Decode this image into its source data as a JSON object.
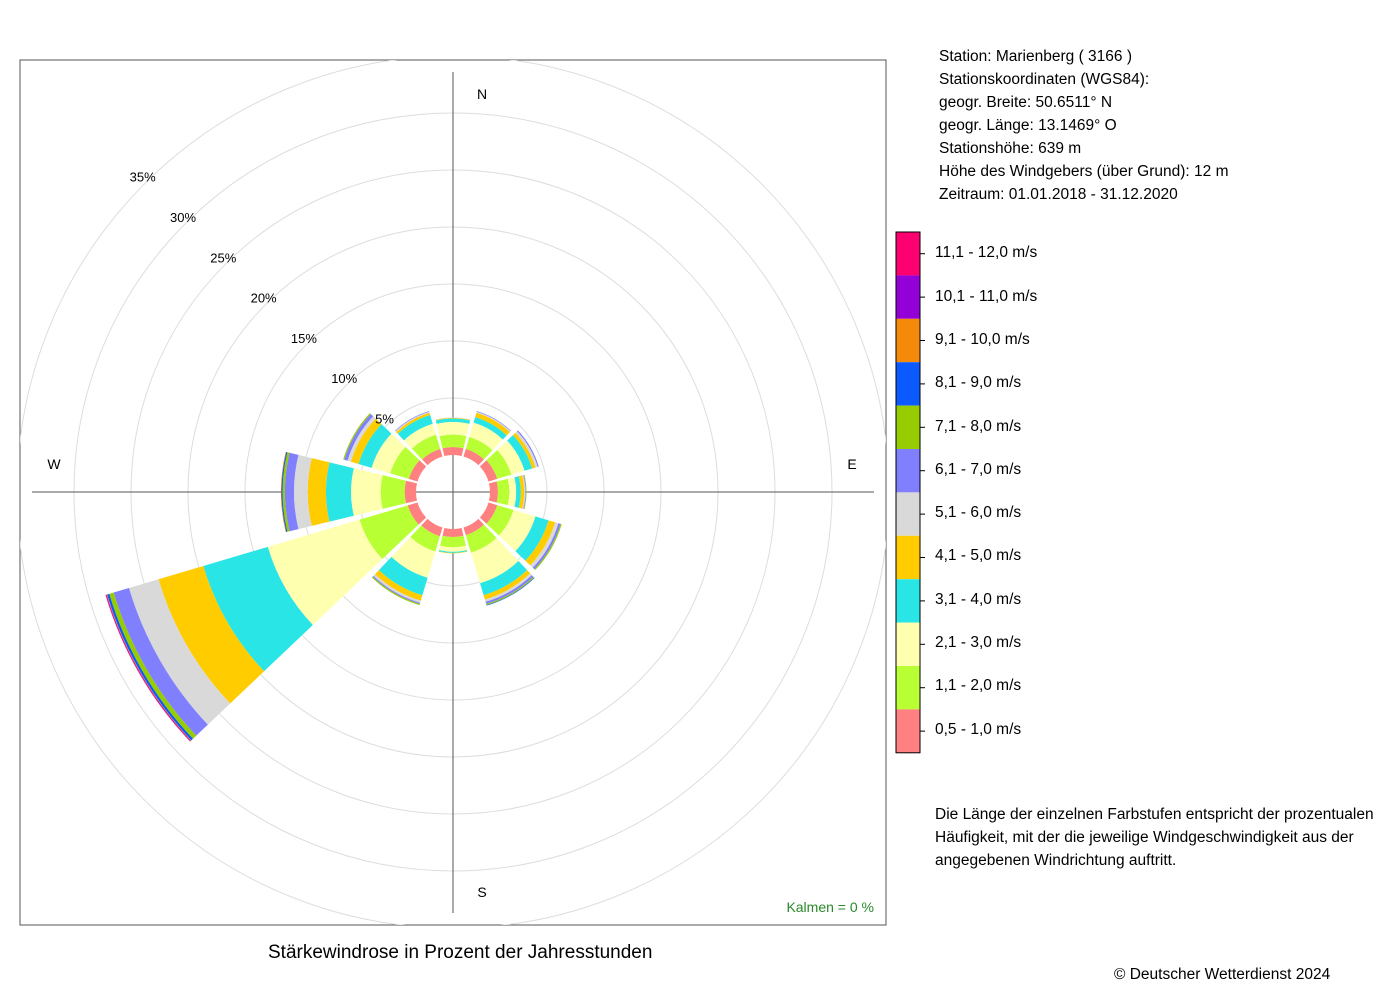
{
  "station_info": [
    "Station:  Marienberg  ( 3166 )",
    "Stationskoordinaten (WGS84):",
    "geogr. Breite: 50.6511° N",
    "geogr. Länge: 13.1469° O",
    "Stationshöhe: 639 m",
    "Höhe des Windgebers (über Grund): 12 m",
    "Zeitraum: 01.01.2018 - 31.12.2020"
  ],
  "legend": {
    "classes": [
      {
        "label": "11,1 - 12,0 m/s",
        "color": "#ff0070"
      },
      {
        "label": "10,1 - 11,0 m/s",
        "color": "#9300d8"
      },
      {
        "label": "9,1 - 10,0 m/s",
        "color": "#f58a0a"
      },
      {
        "label": "8,1 - 9,0 m/s",
        "color": "#0a5aff"
      },
      {
        "label": "7,1 - 8,0 m/s",
        "color": "#96cc00"
      },
      {
        "label": "6,1 - 7,0 m/s",
        "color": "#8080ff"
      },
      {
        "label": "5,1 - 6,0 m/s",
        "color": "#d9d9d9"
      },
      {
        "label": "4,1 - 5,0 m/s",
        "color": "#ffcc00"
      },
      {
        "label": "3,1 - 4,0 m/s",
        "color": "#2ae5e5"
      },
      {
        "label": "2,1 - 3,0 m/s",
        "color": "#ffffb0"
      },
      {
        "label": "1,1 - 2,0 m/s",
        "color": "#b8ff33"
      },
      {
        "label": "0,5 - 1,0 m/s",
        "color": "#ff8080"
      }
    ]
  },
  "note": "Die Länge der einzelnen Farbstufen entspricht der prozentualen Häufigkeit, mit der die jeweilige Windgeschwindigkeit aus der angegebenen Windrichtung auftritt.",
  "caption": "Stärkewindrose in Prozent der Jahresstunden",
  "calms": "Kalmen  =  0 %",
  "copyright": "© Deutscher Wetterdienst  2024",
  "chart_data": {
    "type": "wind-rose",
    "title": "Stärkewindrose in Prozent der Jahresstunden",
    "compass_labels": {
      "N": "N",
      "E": "E",
      "S": "S",
      "W": "W"
    },
    "rings": [
      5,
      10,
      15,
      20,
      25,
      30,
      35
    ],
    "ring_labels": [
      "5%",
      "10%",
      "15%",
      "20%",
      "25%",
      "30%",
      "35%"
    ],
    "ring_unit": "%",
    "calms_percent": 0,
    "speed_classes": [
      "0,5 - 1,0 m/s",
      "1,1 - 2,0 m/s",
      "2,1 - 3,0 m/s",
      "3,1 - 4,0 m/s",
      "4,1 - 5,0 m/s",
      "5,1 - 6,0 m/s",
      "6,1 - 7,0 m/s",
      "7,1 - 8,0 m/s",
      "8,1 - 9,0 m/s",
      "9,1 - 10,0 m/s",
      "10,1 - 11,0 m/s",
      "11,1 - 12,0 m/s"
    ],
    "direction_degrees": [
      0,
      30,
      60,
      90,
      120,
      150,
      180,
      210,
      240,
      270,
      300,
      330
    ],
    "sectors": [
      {
        "direction": 0,
        "values": [
          0.7,
          1.1,
          1.1,
          0.3,
          0.05,
          0.05,
          0,
          0,
          0,
          0,
          0,
          0
        ]
      },
      {
        "direction": 30,
        "values": [
          0.7,
          1.1,
          1.3,
          0.5,
          0.4,
          0.1,
          0.05,
          0,
          0,
          0,
          0,
          0
        ]
      },
      {
        "direction": 60,
        "values": [
          0.8,
          1.3,
          1.2,
          0.7,
          0.3,
          0.2,
          0.1,
          0,
          0,
          0,
          0,
          0
        ]
      },
      {
        "direction": 90,
        "values": [
          0.7,
          1.0,
          0.6,
          0.4,
          0.3,
          0.1,
          0.05,
          0.05,
          0,
          0,
          0,
          0
        ]
      },
      {
        "direction": 120,
        "values": [
          0.8,
          1.5,
          2.0,
          1.2,
          0.6,
          0.3,
          0.2,
          0.1,
          0,
          0,
          0,
          0
        ]
      },
      {
        "direction": 150,
        "values": [
          0.7,
          1.6,
          2.8,
          1.1,
          0.4,
          0.2,
          0.2,
          0.1,
          0.05,
          0,
          0,
          0
        ]
      },
      {
        "direction": 180,
        "values": [
          0.7,
          0.9,
          0.4,
          0.1,
          0.05,
          0,
          0,
          0,
          0,
          0,
          0,
          0
        ]
      },
      {
        "direction": 210,
        "values": [
          0.8,
          1.4,
          2.4,
          1.6,
          0.5,
          0.2,
          0.1,
          0.1,
          0,
          0,
          0,
          0
        ]
      },
      {
        "direction": 240,
        "values": [
          0.9,
          4.4,
          8.4,
          5.9,
          4.1,
          2.7,
          1.4,
          0.4,
          0.2,
          0.05,
          0.05,
          0.05
        ]
      },
      {
        "direction": 270,
        "values": [
          1.0,
          2.1,
          2.6,
          2.2,
          1.6,
          1.2,
          0.8,
          0.2,
          0.1,
          0.05,
          0,
          0
        ]
      },
      {
        "direction": 300,
        "values": [
          0.8,
          1.7,
          1.7,
          1.2,
          0.7,
          0.3,
          0.3,
          0.1,
          0,
          0,
          0,
          0
        ]
      },
      {
        "direction": 330,
        "values": [
          0.7,
          1.3,
          1.0,
          0.8,
          0.2,
          0.1,
          0.05,
          0,
          0,
          0,
          0,
          0
        ]
      }
    ]
  }
}
